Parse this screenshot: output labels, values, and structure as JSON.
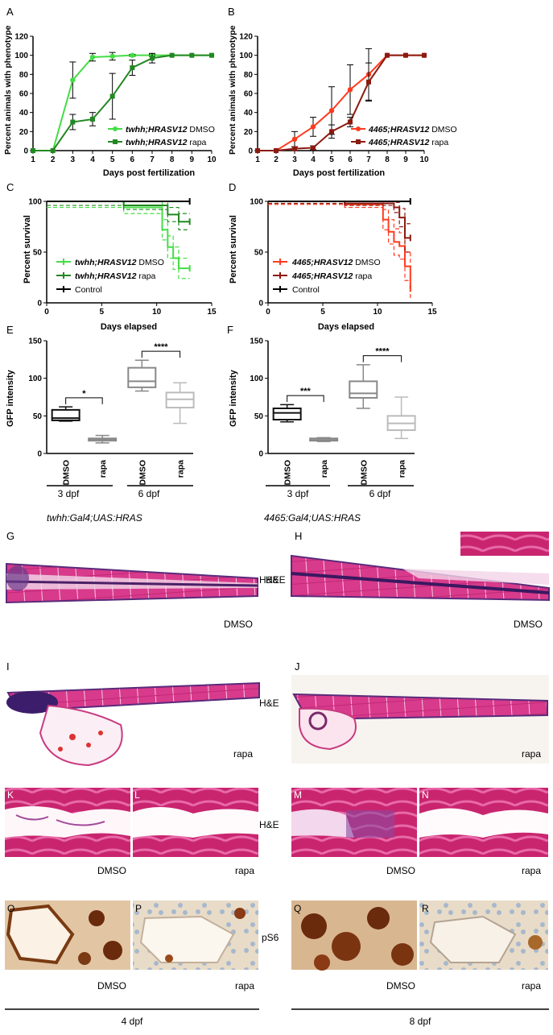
{
  "panels": {
    "A": "A",
    "B": "B",
    "C": "C",
    "D": "D",
    "E": "E",
    "F": "F",
    "G": "G",
    "H": "H",
    "I": "I",
    "J": "J",
    "K": "K",
    "L": "L",
    "M": "M",
    "N": "N",
    "O": "O",
    "P": "P",
    "Q": "Q",
    "R": "R"
  },
  "colors": {
    "green_dmso": "#44dd44",
    "green_rapa": "#228822",
    "red_dmso": "#ff3b1f",
    "red_rapa": "#8b1a10",
    "control": "#000000",
    "box_dmso_3": "#111111",
    "box_rapa_3": "#888888",
    "box_dmso_6": "#888888",
    "box_rapa_6": "#bbbbbb"
  },
  "phenotype": {
    "ylabel": "Percent animals with phenotype",
    "xlabel": "Days post fertilization",
    "xticks": [
      "1",
      "2",
      "3",
      "4",
      "5",
      "6",
      "7",
      "8",
      "9",
      "10"
    ],
    "yticks": [
      "0",
      "20",
      "40",
      "60",
      "80",
      "100",
      "120"
    ]
  },
  "survival": {
    "ylabel": "Percent survival",
    "xlabel": "Days elapsed",
    "xticks": [
      "0",
      "5",
      "10",
      "15"
    ],
    "yticks": [
      "0",
      "50",
      "100"
    ]
  },
  "gfp": {
    "ylabel": "GFP intensity",
    "yticks": [
      "0",
      "50",
      "100",
      "150"
    ],
    "cat_dmso": "DMSO",
    "cat_rapa": "rapa",
    "group_3": "3 dpf",
    "group_6": "6 dpf"
  },
  "legend_green": {
    "gene": "twhh;HRASV12",
    "dmso": " DMSO",
    "rapa": " rapa"
  },
  "legend_red": {
    "gene": "4465;HRASV12",
    "dmso": " DMSO",
    "rapa": " rapa"
  },
  "legend_control": "Control",
  "sig": {
    "e3": "*",
    "e6": "****",
    "f3": "***",
    "f6": "****"
  },
  "genotype_left": "twhh:Gal4;UAS:HRAS",
  "genotype_right": "4465:Gal4;UAS:HRAS",
  "labels": {
    "he": "H&E",
    "ps6": "pS6",
    "dmso": "DMSO",
    "rapa": "rapa",
    "dpf4": "4 dpf",
    "dpf8": "8 dpf"
  },
  "chart_data": [
    {
      "panel": "A",
      "type": "line",
      "xlabel": "Days post fertilization",
      "ylabel": "Percent animals with phenotype",
      "xlim": [
        1,
        10
      ],
      "ylim": [
        0,
        120
      ],
      "x": [
        1,
        2,
        3,
        4,
        5,
        6,
        7,
        8,
        9,
        10
      ],
      "series": [
        {
          "name": "twhh;HRASV12 DMSO",
          "color": "#44dd44",
          "marker": "circle",
          "values": [
            0,
            0,
            74,
            98,
            99,
            100,
            100,
            100,
            100,
            100
          ],
          "error": [
            0,
            0,
            19,
            4,
            4,
            1,
            1,
            0,
            0,
            0
          ]
        },
        {
          "name": "twhh;HRASV12 rapa",
          "color": "#228822",
          "marker": "square",
          "values": [
            0,
            0,
            30,
            33,
            57,
            87,
            97,
            100,
            100,
            100
          ],
          "error": [
            0,
            0,
            8,
            7,
            24,
            8,
            5,
            0,
            0,
            0
          ]
        }
      ]
    },
    {
      "panel": "B",
      "type": "line",
      "xlabel": "Days post fertilization",
      "ylabel": "Percent animals with phenotype",
      "xlim": [
        1,
        10
      ],
      "ylim": [
        0,
        120
      ],
      "x": [
        1,
        2,
        3,
        4,
        5,
        6,
        7,
        8,
        9,
        10
      ],
      "series": [
        {
          "name": "4465;HRASV12 DMSO",
          "color": "#ff3b1f",
          "marker": "circle",
          "values": [
            0,
            0,
            12,
            25,
            42,
            64,
            80,
            100,
            100,
            100
          ],
          "error": [
            0,
            0,
            8,
            10,
            25,
            26,
            27,
            0,
            0,
            0
          ]
        },
        {
          "name": "4465;HRASV12 rapa",
          "color": "#8b1a10",
          "marker": "square",
          "values": [
            0,
            0,
            2,
            3,
            20,
            30,
            72,
            100,
            100,
            100
          ],
          "error": [
            0,
            0,
            2,
            2,
            7,
            5,
            20,
            0,
            0,
            0
          ]
        }
      ]
    },
    {
      "panel": "C",
      "type": "line",
      "step": true,
      "xlabel": "Days elapsed",
      "ylabel": "Percent survival",
      "xlim": [
        0,
        15
      ],
      "ylim": [
        0,
        100
      ],
      "series": [
        {
          "name": "twhh;HRASV12 DMSO",
          "color": "#44dd44",
          "x": [
            0,
            7,
            10,
            10.5,
            11,
            11.5,
            12,
            13
          ],
          "values": [
            100,
            94,
            94,
            72,
            55,
            44,
            34,
            34
          ],
          "ci": [
            6,
            6,
            6,
            10,
            11,
            11,
            10,
            10
          ]
        },
        {
          "name": "twhh;HRASV12 rapa",
          "color": "#228822",
          "x": [
            0,
            7,
            10,
            11,
            12,
            13
          ],
          "values": [
            100,
            96,
            96,
            87,
            80,
            80
          ],
          "ci": [
            4,
            4,
            4,
            7,
            8,
            8
          ]
        },
        {
          "name": "Control",
          "color": "#000000",
          "x": [
            0,
            13
          ],
          "values": [
            100,
            100
          ]
        }
      ]
    },
    {
      "panel": "D",
      "type": "line",
      "step": true,
      "xlabel": "Days elapsed",
      "ylabel": "Percent survival",
      "xlim": [
        0,
        15
      ],
      "ylim": [
        0,
        100
      ],
      "series": [
        {
          "name": "4465;HRASV12 DMSO",
          "color": "#ff3b1f",
          "x": [
            0,
            7,
            10,
            10.5,
            11,
            11.5,
            12,
            12.5,
            13
          ],
          "values": [
            100,
            97,
            97,
            82,
            70,
            60,
            56,
            36,
            14
          ],
          "ci": [
            3,
            3,
            3,
            10,
            12,
            13,
            13,
            14,
            10
          ]
        },
        {
          "name": "4465;HRASV12 rapa",
          "color": "#8b1a10",
          "x": [
            0,
            7,
            11,
            11.5,
            12,
            12.5,
            13
          ],
          "values": [
            100,
            98,
            98,
            94,
            84,
            64,
            64
          ],
          "ci": [
            2,
            2,
            2,
            5,
            9,
            14,
            14
          ]
        },
        {
          "name": "Control",
          "color": "#000000",
          "x": [
            0,
            13
          ],
          "values": [
            100,
            100
          ]
        }
      ]
    },
    {
      "panel": "E",
      "type": "box",
      "ylabel": "GFP intensity",
      "ylim": [
        0,
        150
      ],
      "categories": [
        "DMSO",
        "rapa",
        "DMSO",
        "rapa"
      ],
      "groups": [
        "3 dpf",
        "3 dpf",
        "6 dpf",
        "6 dpf"
      ],
      "boxes": [
        {
          "min": 43,
          "q1": 44,
          "median": 47,
          "q3": 58,
          "max": 62
        },
        {
          "min": 14,
          "q1": 17,
          "median": 19,
          "q3": 20,
          "max": 24
        },
        {
          "min": 83,
          "q1": 88,
          "median": 96,
          "q3": 114,
          "max": 124
        },
        {
          "min": 40,
          "q1": 61,
          "median": 72,
          "q3": 81,
          "max": 94
        }
      ],
      "significance": [
        {
          "pair": [
            0,
            1
          ],
          "label": "*"
        },
        {
          "pair": [
            2,
            3
          ],
          "label": "****"
        }
      ]
    },
    {
      "panel": "F",
      "type": "box",
      "ylabel": "GFP intensity",
      "ylim": [
        0,
        150
      ],
      "categories": [
        "DMSO",
        "rapa",
        "DMSO",
        "rapa"
      ],
      "groups": [
        "3 dpf",
        "3 dpf",
        "6 dpf",
        "6 dpf"
      ],
      "boxes": [
        {
          "min": 42,
          "q1": 45,
          "median": 54,
          "q3": 60,
          "max": 65
        },
        {
          "min": 16,
          "q1": 17,
          "median": 18,
          "q3": 20,
          "max": 21
        },
        {
          "min": 60,
          "q1": 74,
          "median": 80,
          "q3": 96,
          "max": 118
        },
        {
          "min": 20,
          "q1": 31,
          "median": 40,
          "q3": 50,
          "max": 75
        }
      ],
      "significance": [
        {
          "pair": [
            0,
            1
          ],
          "label": "***"
        },
        {
          "pair": [
            2,
            3
          ],
          "label": "****"
        }
      ]
    }
  ]
}
